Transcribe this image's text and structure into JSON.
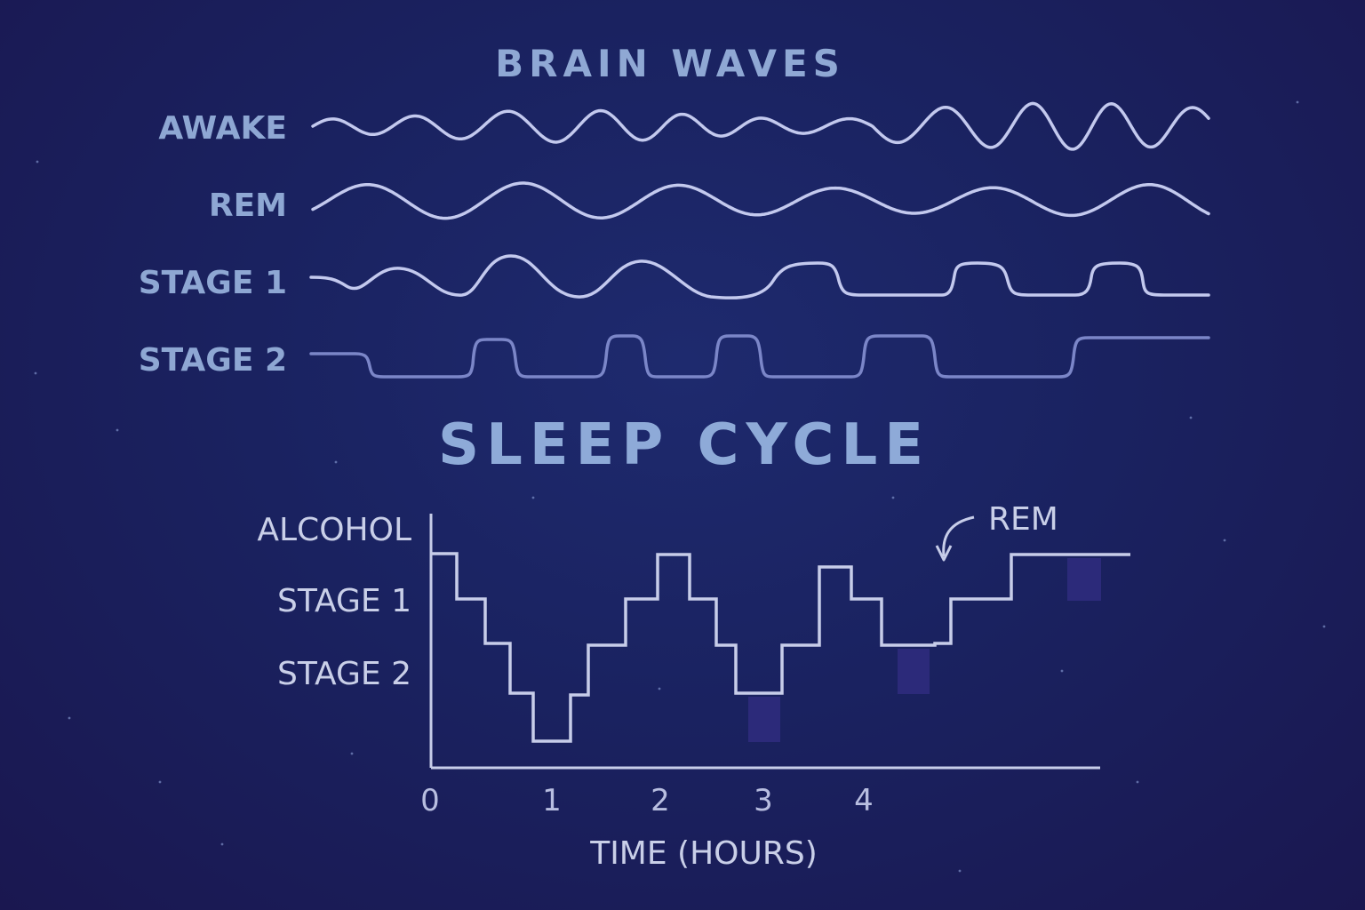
{
  "brain_waves": {
    "title": "BRAIN WAVES",
    "labels": [
      "AWAKE",
      "REM",
      "STAGE 1",
      "STAGE 2"
    ]
  },
  "sleep_cycle": {
    "title": "SLEEP CYCLE",
    "annotation": "REM",
    "y_labels": [
      "ALCOHOL",
      "STAGE 1",
      "STAGE 2"
    ],
    "x_ticks": [
      "0",
      "1",
      "2",
      "3",
      "4"
    ],
    "x_axis_label": "TIME (HOURS)"
  },
  "colors": {
    "wave_line": "#c3c9ee",
    "stage2_line": "#7b86c8",
    "title": "#8eaad8",
    "rem_block": "#2c2a7a"
  }
}
